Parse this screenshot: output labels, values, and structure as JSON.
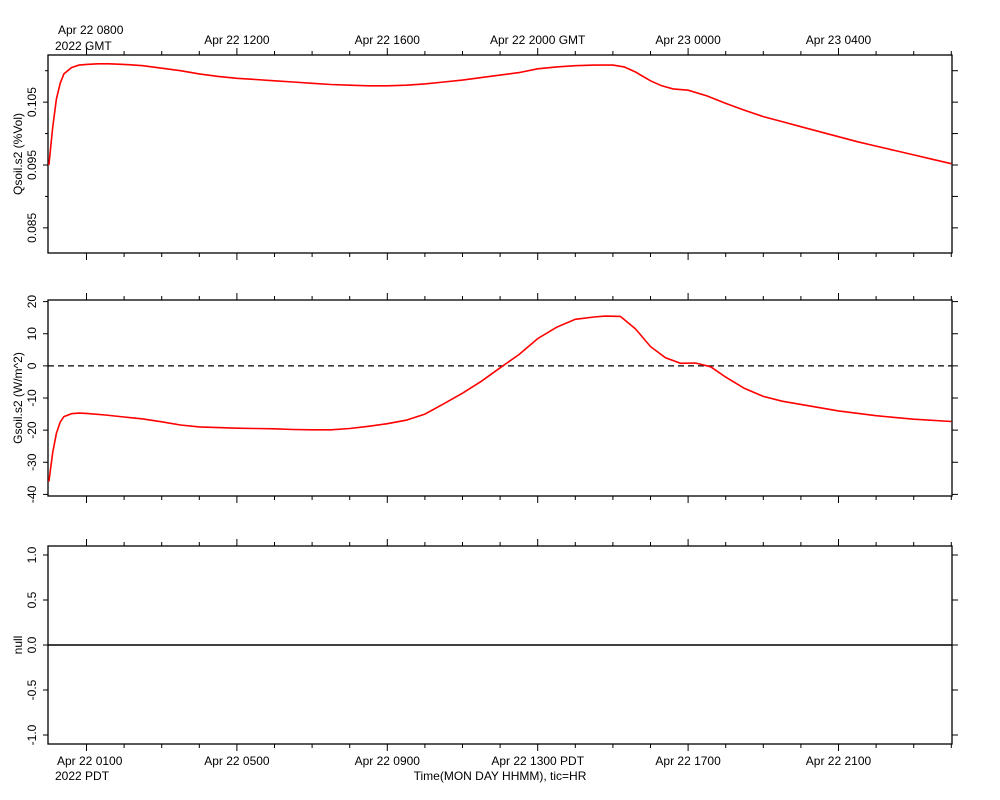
{
  "colors": {
    "series": "#ff0000",
    "axes": "#000000",
    "zero_line": "#000000"
  },
  "top_axis": {
    "first_label": "Apr 22 0800",
    "first_label_year": "2022 GMT",
    "labels": [
      "Apr 22 1200",
      "Apr 22 1600",
      "Apr 22 2000 GMT",
      "Apr 23 0000",
      "Apr 23 0400"
    ]
  },
  "bottom_axis": {
    "first_label": "Apr 22 0100",
    "first_label_year": "2022 PDT",
    "labels": [
      "Apr 22 0500",
      "Apr 22 0900",
      "Apr 22 1300 PDT",
      "Apr 22 1700",
      "Apr 22 2100"
    ],
    "title": "Time(MON DAY HHMM), tic=HR"
  },
  "chart_data": [
    {
      "type": "line",
      "ylabel": "Qsoil.s2 (%Vol)",
      "ylim": [
        0.081,
        0.1125
      ],
      "yticks": [
        0.085,
        0.095,
        0.105
      ],
      "ytick_labels": [
        "0.085",
        "0.095",
        "0.105"
      ],
      "xlim_hours_pdt": [
        0.0,
        24.0
      ],
      "x_hours_pdt": [
        0.0,
        0.1,
        0.2,
        0.3,
        0.4,
        0.6,
        0.8,
        1.0,
        1.3,
        1.6,
        2.0,
        2.5,
        3.0,
        3.5,
        4.0,
        4.5,
        5.0,
        5.5,
        6.0,
        6.5,
        7.0,
        7.5,
        8.0,
        8.5,
        9.0,
        9.5,
        10.0,
        10.5,
        11.0,
        11.5,
        12.0,
        12.5,
        13.0,
        13.5,
        14.0,
        14.5,
        15.0,
        15.3,
        15.6,
        16.0,
        16.3,
        16.6,
        17.0,
        17.5,
        18.0,
        18.5,
        19.0,
        19.5,
        20.0,
        20.5,
        21.0,
        21.5,
        22.0,
        22.5,
        23.0,
        23.5,
        24.0
      ],
      "y": [
        0.095,
        0.101,
        0.1055,
        0.108,
        0.1095,
        0.1105,
        0.1109,
        0.111,
        0.1111,
        0.1111,
        0.111,
        0.1108,
        0.1104,
        0.11,
        0.1095,
        0.1091,
        0.1088,
        0.1086,
        0.1084,
        0.1082,
        0.108,
        0.1078,
        0.1077,
        0.1076,
        0.1076,
        0.1077,
        0.1079,
        0.1082,
        0.1085,
        0.1089,
        0.1093,
        0.1097,
        0.1103,
        0.1106,
        0.1108,
        0.1109,
        0.1109,
        0.1106,
        0.1098,
        0.1084,
        0.1076,
        0.1071,
        0.1069,
        0.106,
        0.1048,
        0.1037,
        0.1027,
        0.1019,
        0.1011,
        0.1003,
        0.0995,
        0.0987,
        0.098,
        0.0973,
        0.0966,
        0.0959,
        0.0952
      ]
    },
    {
      "type": "line",
      "ylabel": "Gsoil.s2 (W/m^2)",
      "ylim": [
        -40.5,
        20.5
      ],
      "yticks": [
        -40,
        -30,
        -20,
        -10,
        0,
        10,
        20
      ],
      "ytick_labels": [
        "-40",
        "-30",
        "-20",
        "-10",
        "0",
        "10",
        "20"
      ],
      "zero_line": {
        "y": 0,
        "style": "dashed"
      },
      "xlim_hours_pdt": [
        0.0,
        24.0
      ],
      "x_hours_pdt": [
        0.0,
        0.1,
        0.2,
        0.3,
        0.4,
        0.6,
        0.8,
        1.0,
        1.5,
        2.0,
        2.5,
        3.0,
        3.5,
        4.0,
        4.5,
        5.0,
        5.5,
        6.0,
        6.5,
        7.0,
        7.5,
        8.0,
        8.5,
        9.0,
        9.5,
        10.0,
        10.5,
        11.0,
        11.5,
        12.0,
        12.5,
        13.0,
        13.5,
        14.0,
        14.5,
        14.8,
        15.2,
        15.6,
        16.0,
        16.4,
        16.8,
        17.2,
        17.6,
        18.0,
        18.5,
        19.0,
        19.5,
        20.0,
        21.0,
        22.0,
        23.0,
        24.0
      ],
      "y": [
        -36,
        -27,
        -21,
        -17.5,
        -15.8,
        -14.9,
        -14.7,
        -14.8,
        -15.3,
        -15.9,
        -16.5,
        -17.4,
        -18.4,
        -19.0,
        -19.2,
        -19.4,
        -19.5,
        -19.6,
        -19.8,
        -19.9,
        -19.9,
        -19.5,
        -18.8,
        -18.0,
        -16.9,
        -15.0,
        -11.8,
        -8.5,
        -4.8,
        -0.6,
        3.5,
        8.5,
        12.0,
        14.5,
        15.2,
        15.5,
        15.4,
        11.5,
        6.0,
        2.5,
        0.8,
        0.9,
        -0.3,
        -3.5,
        -7.0,
        -9.5,
        -11.0,
        -12.0,
        -14.0,
        -15.5,
        -16.6,
        -17.3
      ]
    },
    {
      "type": "line",
      "ylabel": "null",
      "ylim": [
        -1.1,
        1.1
      ],
      "yticks": [
        -1.0,
        -0.5,
        0.0,
        0.5,
        1.0
      ],
      "ytick_labels": [
        "-1.0",
        "-0.5",
        "0.0",
        "0.5",
        "1.0"
      ],
      "xlim_hours_pdt": [
        0.0,
        24.0
      ],
      "x_hours_pdt": [
        0.0,
        24.0
      ],
      "y": [
        0.0,
        0.0
      ]
    }
  ]
}
